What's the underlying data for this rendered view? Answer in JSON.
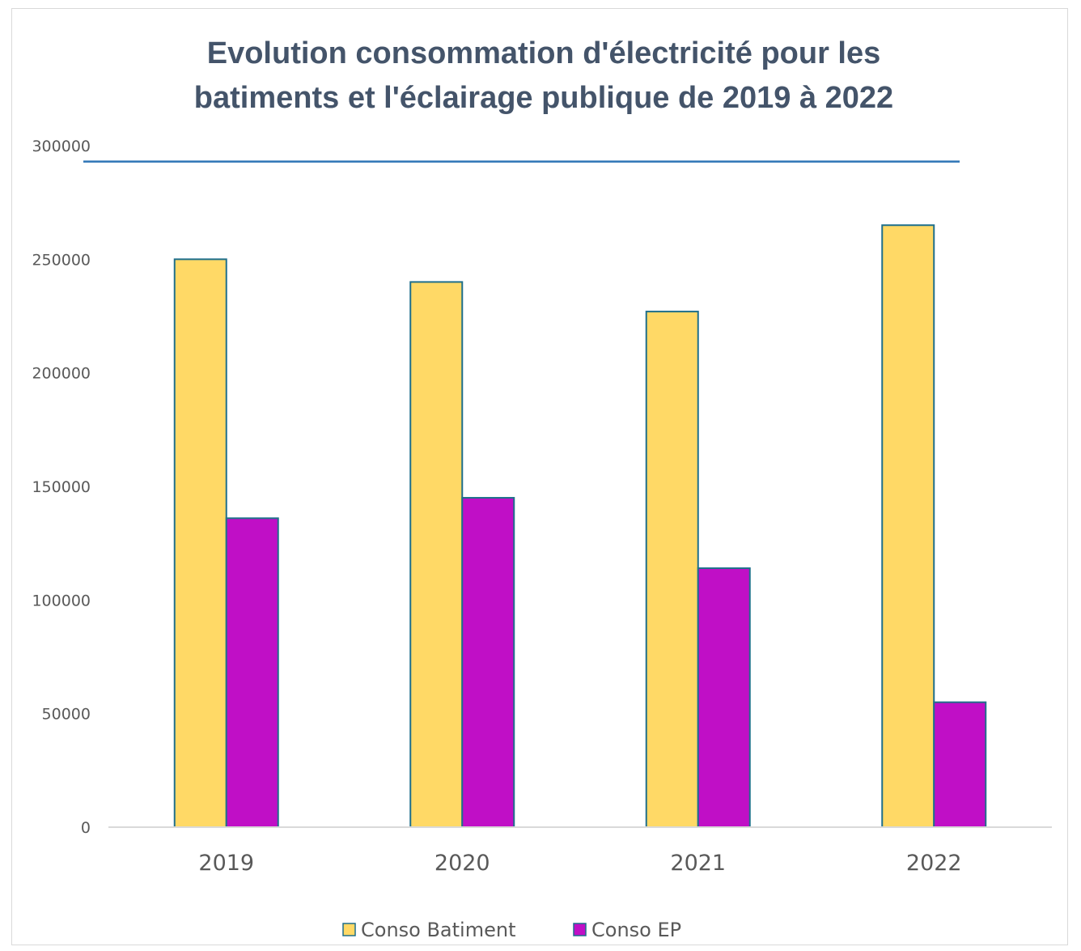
{
  "chart_data": {
    "type": "bar",
    "title_lines": [
      "Evolution consommation d'électricité pour les",
      "batiments et l'éclairage publique de 2019 à 2022"
    ],
    "categories": [
      "2019",
      "2020",
      "2021",
      "2022"
    ],
    "series": [
      {
        "name": "Conso Batiment",
        "values": [
          250000,
          240000,
          227000,
          265000
        ],
        "color": "#ffd966",
        "stroke": "#1f6f8b"
      },
      {
        "name": "Conso EP",
        "values": [
          136000,
          145000,
          114000,
          55000
        ],
        "color": "#c00fc6",
        "stroke": "#1f6f8b"
      }
    ],
    "yticks": [
      "0",
      "50000",
      "100000",
      "150000",
      "200000",
      "250000",
      "300000"
    ],
    "ylim": [
      0,
      300000
    ],
    "reference_line": {
      "value": 293000,
      "color": "#2e75b6"
    },
    "legend_position": "bottom",
    "grid": false
  }
}
